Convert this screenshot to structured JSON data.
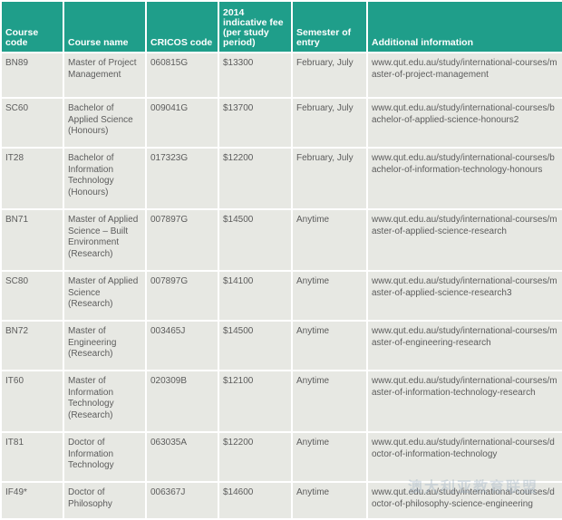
{
  "table": {
    "headers": [
      "Course code",
      "Course name",
      "CRICOS code",
      "2014 indicative fee (per study period)",
      "Semester of entry",
      "Additional information"
    ],
    "rows": [
      [
        "BN89",
        "Master of Project Management",
        "060815G",
        "$13300",
        "February, July",
        "www.qut.edu.au/study/international-courses/master-of-project-management"
      ],
      [
        "SC60",
        "Bachelor of Applied Science (Honours)",
        "009041G",
        "$13700",
        "February, July",
        "www.qut.edu.au/study/international-courses/bachelor-of-applied-science-honours2"
      ],
      [
        "IT28",
        "Bachelor of Information Technology (Honours)",
        "017323G",
        "$12200",
        "February, July",
        "www.qut.edu.au/study/international-courses/bachelor-of-information-technology-honours"
      ],
      [
        "BN71",
        "Master of Applied Science – Built Environment (Research)",
        "007897G",
        "$14500",
        "Anytime",
        "www.qut.edu.au/study/international-courses/master-of-applied-science-research"
      ],
      [
        "SC80",
        "Master of Applied Science (Research)",
        "007897G",
        "$14100",
        "Anytime",
        "www.qut.edu.au/study/international-courses/master-of-applied-science-research3"
      ],
      [
        "BN72",
        "Master of Engineering (Research)",
        "003465J",
        "$14500",
        "Anytime",
        "www.qut.edu.au/study/international-courses/master-of-engineering-research"
      ],
      [
        "IT60",
        "Master of Information Technology (Research)",
        "020309B",
        "$12100",
        "Anytime",
        "www.qut.edu.au/study/international-courses/master-of-information-technology-research"
      ],
      [
        "IT81",
        "Doctor of Information Technology",
        "063035A",
        "$12200",
        "Anytime",
        "www.qut.edu.au/study/international-courses/doctor-of-information-technology"
      ],
      [
        "IF49*",
        "Doctor of Philosophy",
        "006367J",
        "$14600",
        "Anytime",
        "www.qut.edu.au/study/international-courses/doctor-of-philosophy-science-engineering"
      ]
    ]
  },
  "watermark": "澳大利亚教育联盟"
}
